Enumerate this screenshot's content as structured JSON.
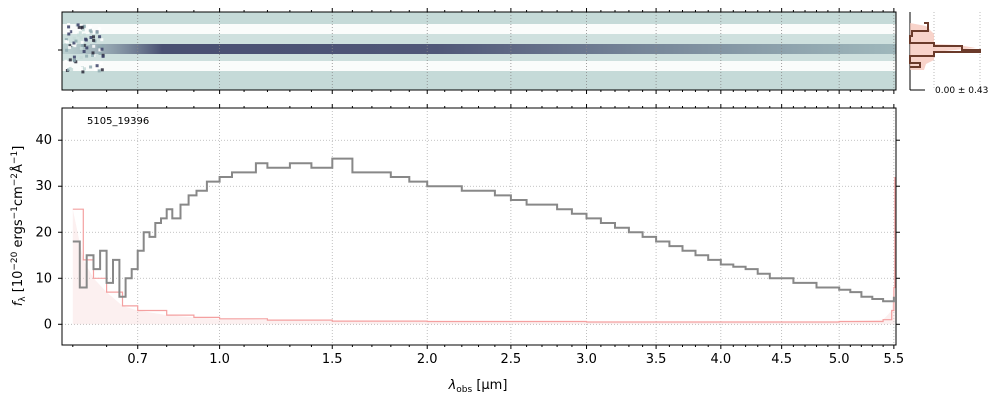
{
  "chart_data": [
    {
      "type": "heatmap",
      "panel": "2D spectrum",
      "colormap": [
        "#ffffff",
        "#c5dad8",
        "#8faab0",
        "#3a3f66"
      ],
      "trace_color": "#3a3f66",
      "background_color": "#c5dad8"
    },
    {
      "type": "line",
      "panel": "spatial profile",
      "annotation": "0.00 ± 0.43",
      "profile_color": "#6b3a2a",
      "fill_color": "#f5c4b8"
    },
    {
      "type": "line",
      "panel": "1D spectrum",
      "label": "5105_19396",
      "xlabel": "λ_obs [μm]",
      "ylabel": "f_λ [10^-20 ergs^-1 cm^-2 Å^-1]",
      "ylabel_parts": {
        "prefix": "f",
        "sub": "λ",
        "main": " [10",
        "exp1": "−20",
        "mid": " ergs",
        "exp2": "−1",
        "mid2": "cm",
        "exp3": "−2",
        "end": "Å",
        "exp4": "−1",
        "close": "]"
      },
      "xlabel_parts": {
        "lambda": "λ",
        "sub": "obs",
        "unit": " [μm]"
      },
      "xlim": [
        0.47,
        5.52
      ],
      "ylim": [
        -4.5,
        47
      ],
      "x_ticks": [
        0.7,
        1.0,
        1.5,
        2.0,
        2.5,
        3.0,
        3.5,
        4.0,
        4.5,
        5.0,
        5.5
      ],
      "x_tick_labels": [
        "0.7",
        "1.0",
        "1.5",
        "2.0",
        "2.5",
        "3.0",
        "3.5",
        "4.0",
        "4.5",
        "5.0",
        "5.5"
      ],
      "y_ticks": [
        0,
        10,
        20,
        30,
        40
      ],
      "y_tick_labels": [
        "0",
        "10",
        "20",
        "30",
        "40"
      ],
      "grid": true,
      "series": [
        {
          "role": "flux",
          "color": "#888888",
          "points": [
            [
              0.5,
              18
            ],
            [
              0.52,
              8
            ],
            [
              0.54,
              15
            ],
            [
              0.56,
              12
            ],
            [
              0.58,
              16
            ],
            [
              0.6,
              9
            ],
            [
              0.62,
              14
            ],
            [
              0.64,
              6
            ],
            [
              0.66,
              10
            ],
            [
              0.68,
              12
            ],
            [
              0.7,
              16
            ],
            [
              0.72,
              20
            ],
            [
              0.74,
              19
            ],
            [
              0.76,
              22
            ],
            [
              0.78,
              23
            ],
            [
              0.8,
              25
            ],
            [
              0.82,
              23
            ],
            [
              0.85,
              26
            ],
            [
              0.88,
              28
            ],
            [
              0.91,
              29
            ],
            [
              0.95,
              31
            ],
            [
              1.0,
              32
            ],
            [
              1.05,
              33
            ],
            [
              1.1,
              33
            ],
            [
              1.15,
              35
            ],
            [
              1.2,
              34
            ],
            [
              1.3,
              35
            ],
            [
              1.4,
              34
            ],
            [
              1.5,
              36
            ],
            [
              1.6,
              33
            ],
            [
              1.7,
              33
            ],
            [
              1.8,
              32
            ],
            [
              1.9,
              31
            ],
            [
              2.0,
              30
            ],
            [
              2.1,
              30
            ],
            [
              2.2,
              29
            ],
            [
              2.3,
              29
            ],
            [
              2.4,
              28
            ],
            [
              2.5,
              27
            ],
            [
              2.6,
              26
            ],
            [
              2.7,
              26
            ],
            [
              2.8,
              25
            ],
            [
              2.9,
              24
            ],
            [
              3.0,
              23
            ],
            [
              3.1,
              22
            ],
            [
              3.2,
              21
            ],
            [
              3.3,
              20
            ],
            [
              3.4,
              19
            ],
            [
              3.5,
              18
            ],
            [
              3.6,
              17
            ],
            [
              3.7,
              16
            ],
            [
              3.8,
              15
            ],
            [
              3.9,
              14
            ],
            [
              4.0,
              13
            ],
            [
              4.1,
              12.5
            ],
            [
              4.2,
              12
            ],
            [
              4.3,
              11
            ],
            [
              4.4,
              10
            ],
            [
              4.5,
              10
            ],
            [
              4.6,
              9
            ],
            [
              4.7,
              9
            ],
            [
              4.8,
              8
            ],
            [
              4.9,
              8
            ],
            [
              5.0,
              7.5
            ],
            [
              5.1,
              7
            ],
            [
              5.2,
              6
            ],
            [
              5.3,
              5.5
            ],
            [
              5.4,
              5
            ],
            [
              5.45,
              5
            ],
            [
              5.5,
              6
            ]
          ]
        },
        {
          "role": "uncertainty",
          "color": "#f4a0a0",
          "points": [
            [
              0.5,
              25
            ],
            [
              0.53,
              14
            ],
            [
              0.56,
              10
            ],
            [
              0.6,
              7
            ],
            [
              0.65,
              4
            ],
            [
              0.7,
              3
            ],
            [
              0.8,
              2
            ],
            [
              0.9,
              1.5
            ],
            [
              1.0,
              1.2
            ],
            [
              1.2,
              0.9
            ],
            [
              1.5,
              0.7
            ],
            [
              2.0,
              0.6
            ],
            [
              3.0,
              0.5
            ],
            [
              4.0,
              0.5
            ],
            [
              5.0,
              0.6
            ],
            [
              5.4,
              1
            ],
            [
              5.48,
              3
            ],
            [
              5.5,
              8
            ],
            [
              5.51,
              32
            ]
          ]
        }
      ]
    }
  ]
}
